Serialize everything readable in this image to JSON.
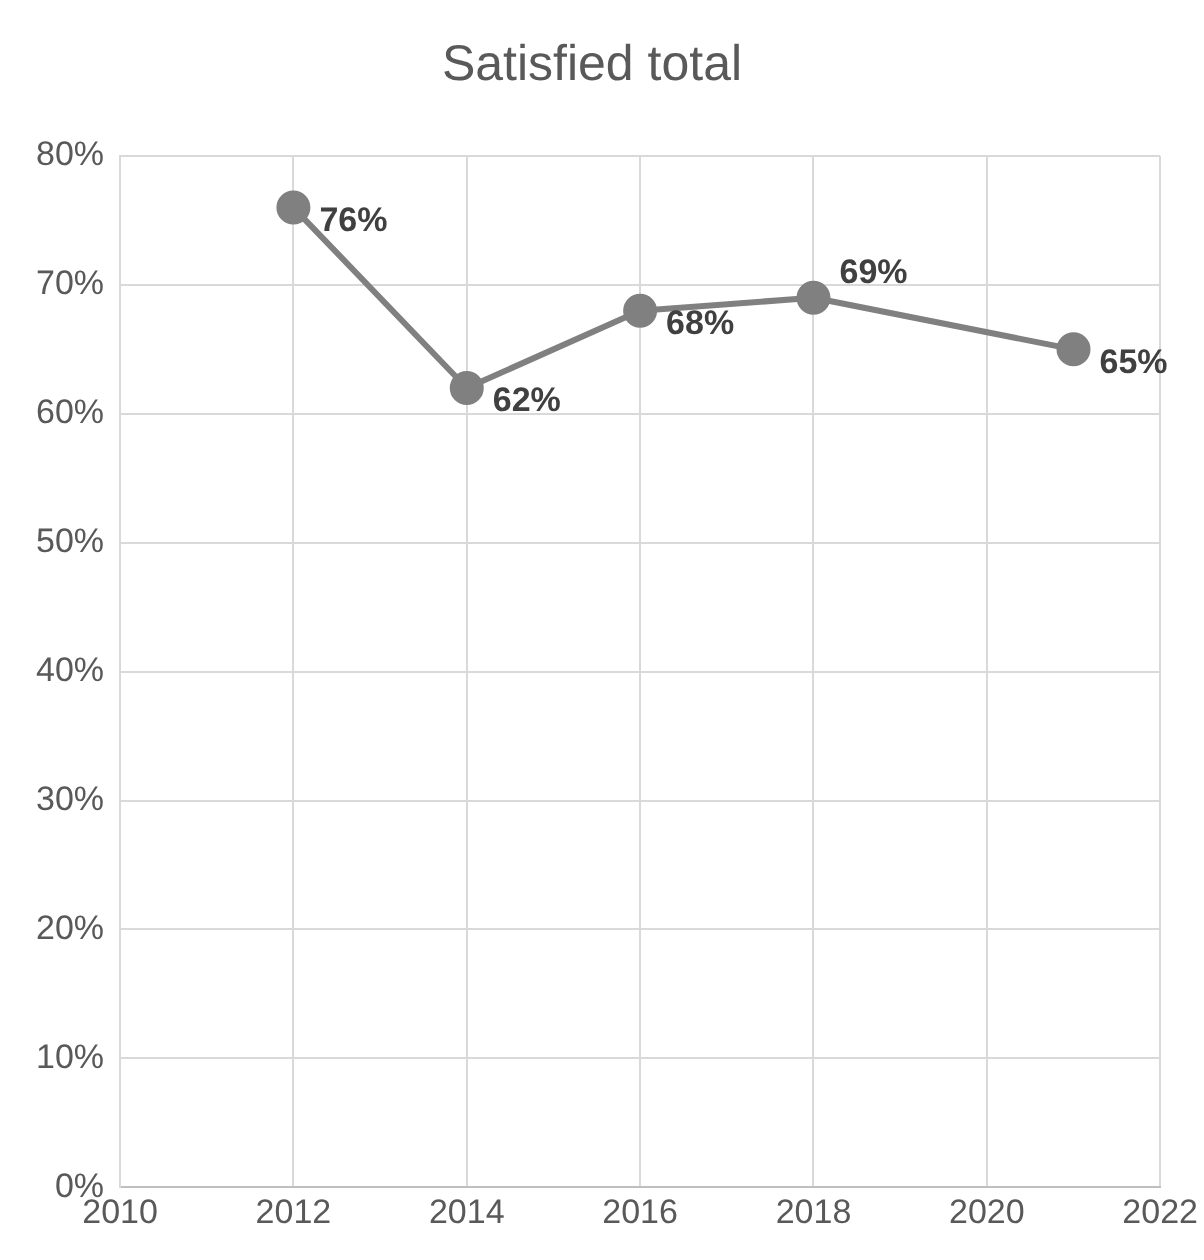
{
  "chart_data": {
    "type": "line",
    "title": "Satisfied total",
    "x": [
      2012,
      2014,
      2016,
      2018,
      2021
    ],
    "series": [
      {
        "color": "#808080",
        "values": [
          76,
          62,
          68,
          69,
          65
        ],
        "value_labels": [
          "76%",
          "62%",
          "68%",
          "69%",
          "65%"
        ]
      }
    ],
    "xlim": [
      2010,
      2022
    ],
    "xticks": [
      2010,
      2012,
      2014,
      2016,
      2018,
      2020,
      2022
    ],
    "ylim": [
      0,
      80
    ],
    "yticks": [
      {
        "value": 0,
        "label": "0%"
      },
      {
        "value": 10,
        "label": "10%"
      },
      {
        "value": 20,
        "label": "20%"
      },
      {
        "value": 30,
        "label": "30%"
      },
      {
        "value": 40,
        "label": "40%"
      },
      {
        "value": 50,
        "label": "50%"
      },
      {
        "value": 60,
        "label": "60%"
      },
      {
        "value": 70,
        "label": "70%"
      },
      {
        "value": 80,
        "label": "80%"
      }
    ],
    "grid": true,
    "marker": "circle",
    "line_style": "solid",
    "legend": false
  }
}
